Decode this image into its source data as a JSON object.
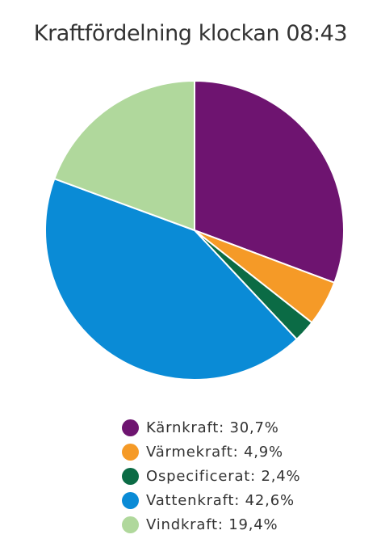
{
  "chart_data": {
    "type": "pie",
    "title": "Kraftfördelning klockan 08:43",
    "slices": [
      {
        "label": "Kärnkraft",
        "value": 30.7,
        "display": "Kärnkraft: 30,7%",
        "color": "#6e1470"
      },
      {
        "label": "Värmekraft",
        "value": 4.9,
        "display": "Värmekraft: 4,9%",
        "color": "#f59a27"
      },
      {
        "label": "Ospecificerat",
        "value": 2.4,
        "display": "Ospecificerat: 2,4%",
        "color": "#0b6b45"
      },
      {
        "label": "Vattenkraft",
        "value": 42.6,
        "display": "Vattenkraft: 42,6%",
        "color": "#0a8bd6"
      },
      {
        "label": "Vindkraft",
        "value": 19.4,
        "display": "Vindkraft: 19,4%",
        "color": "#b0d89c"
      }
    ],
    "start_angle": "12 o'clock",
    "direction": "clockwise",
    "legend_position": "bottom"
  }
}
